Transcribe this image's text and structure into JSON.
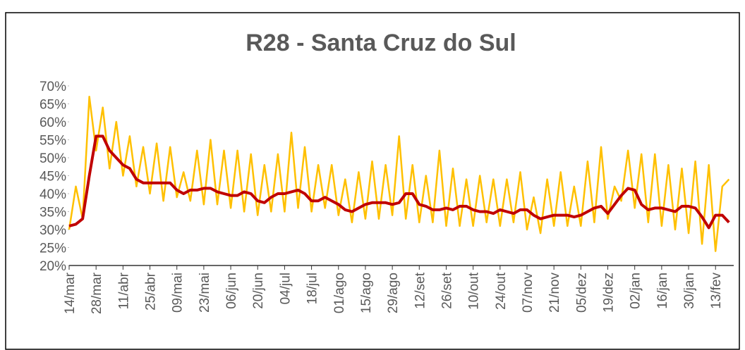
{
  "chart_data": {
    "type": "line",
    "title": "R28 - Santa Cruz do Sul",
    "categories": [
      "14/mar",
      null,
      null,
      null,
      "28/mar",
      null,
      null,
      null,
      "11/abr",
      null,
      null,
      null,
      "25/abr",
      null,
      null,
      null,
      "09/mai",
      null,
      null,
      null,
      "23/mai",
      null,
      null,
      null,
      "06/jun",
      null,
      null,
      null,
      "20/jun",
      null,
      null,
      null,
      "04/jul",
      null,
      null,
      null,
      "18/jul",
      null,
      null,
      null,
      "01/ago",
      null,
      null,
      null,
      "15/ago",
      null,
      null,
      null,
      "29/ago",
      null,
      null,
      null,
      "12/set",
      null,
      null,
      null,
      "26/set",
      null,
      null,
      null,
      "10/out",
      null,
      null,
      null,
      "24/out",
      null,
      null,
      null,
      "07/nov",
      null,
      null,
      null,
      "21/nov",
      null,
      null,
      null,
      "05/dez",
      null,
      null,
      null,
      "19/dez",
      null,
      null,
      null,
      "02/jan",
      null,
      null,
      null,
      "16/jan",
      null,
      null,
      null,
      "30/jan",
      null,
      null,
      null,
      "13/fev",
      null,
      null
    ],
    "series": [
      {
        "color": "#ffc000",
        "width": 2.5,
        "values": [
          30,
          42,
          33,
          67,
          52,
          64,
          47,
          60,
          45,
          56,
          42,
          53,
          40,
          54,
          38,
          53,
          39,
          46,
          38,
          52,
          37,
          55,
          37,
          52,
          36,
          52,
          35,
          51,
          34,
          48,
          35,
          51,
          35,
          57,
          36,
          53,
          35,
          48,
          36,
          48,
          34,
          44,
          32,
          46,
          33,
          49,
          33,
          48,
          34,
          56,
          33,
          48,
          32,
          45,
          32,
          52,
          31,
          47,
          31,
          44,
          31,
          45,
          32,
          44,
          31,
          44,
          32,
          46,
          30,
          39,
          29,
          44,
          31,
          46,
          31,
          42,
          31,
          49,
          32,
          53,
          33,
          42,
          38,
          52,
          36,
          51,
          32,
          51,
          31,
          48,
          30,
          47,
          29,
          49,
          26,
          48,
          24,
          42,
          44
        ]
      },
      {
        "color": "#c00000",
        "width": 4,
        "values": [
          31,
          31.5,
          33,
          45,
          56,
          56,
          52,
          50,
          48,
          47,
          44,
          43,
          43,
          43,
          43,
          43,
          41,
          40,
          41,
          41,
          41.5,
          41.5,
          40.5,
          40,
          39.5,
          39.5,
          40.5,
          40,
          38,
          37.5,
          39,
          40,
          40,
          40.5,
          41,
          40,
          38,
          38,
          39,
          38,
          37,
          35.5,
          35,
          36,
          37,
          37.5,
          37.5,
          37.5,
          37,
          37.5,
          40,
          40,
          37,
          36.5,
          35.5,
          35.5,
          36,
          35.5,
          36.5,
          36.5,
          35.5,
          35,
          35,
          34.5,
          35.5,
          35,
          34.5,
          35.5,
          35.5,
          34,
          33,
          33.5,
          34,
          34,
          34,
          33.5,
          34,
          35,
          36,
          36.5,
          34.5,
          37,
          39.5,
          41.5,
          41,
          37,
          35.5,
          36,
          36,
          35.5,
          35,
          36.5,
          36.5,
          36,
          33.5,
          30.5,
          34,
          34,
          32
        ]
      }
    ],
    "ylim": [
      20,
      70
    ],
    "yticks": [
      {
        "value": 20,
        "label": "20%"
      },
      {
        "value": 25,
        "label": "25%"
      },
      {
        "value": 30,
        "label": "30%"
      },
      {
        "value": 35,
        "label": "35%"
      },
      {
        "value": 40,
        "label": "40%"
      },
      {
        "value": 45,
        "label": "45%"
      },
      {
        "value": 50,
        "label": "50%"
      },
      {
        "value": 55,
        "label": "55%"
      },
      {
        "value": 60,
        "label": "60%"
      },
      {
        "value": 65,
        "label": "65%"
      },
      {
        "value": 70,
        "label": "70%"
      }
    ]
  }
}
